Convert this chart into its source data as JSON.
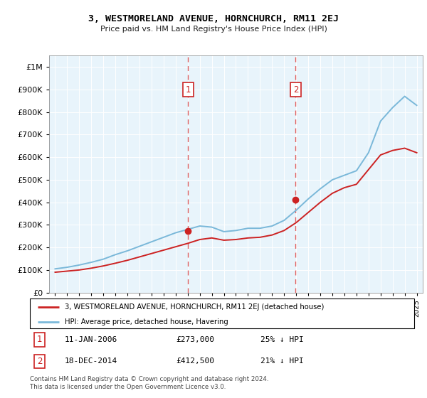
{
  "title": "3, WESTMORELAND AVENUE, HORNCHURCH, RM11 2EJ",
  "subtitle": "Price paid vs. HM Land Registry's House Price Index (HPI)",
  "ytick_values": [
    0,
    100000,
    200000,
    300000,
    400000,
    500000,
    600000,
    700000,
    800000,
    900000,
    1000000
  ],
  "ylim": [
    0,
    1050000
  ],
  "hpi_color": "#7ab8d9",
  "price_color": "#cc2222",
  "dashed_line_color": "#e06060",
  "legend_hpi": "HPI: Average price, detached house, Havering",
  "legend_price": "3, WESTMORELAND AVENUE, HORNCHURCH, RM11 2EJ (detached house)",
  "footnote": "Contains HM Land Registry data © Crown copyright and database right 2024.\nThis data is licensed under the Open Government Licence v3.0.",
  "hpi_years": [
    1995,
    1996,
    1997,
    1998,
    1999,
    2000,
    2001,
    2002,
    2003,
    2004,
    2005,
    2006,
    2007,
    2008,
    2009,
    2010,
    2011,
    2012,
    2013,
    2014,
    2015,
    2016,
    2017,
    2018,
    2019,
    2020,
    2021,
    2022,
    2023,
    2024,
    2025
  ],
  "hpi_vals": [
    105000,
    112000,
    122000,
    134000,
    148000,
    168000,
    185000,
    205000,
    225000,
    245000,
    265000,
    280000,
    295000,
    290000,
    270000,
    275000,
    285000,
    285000,
    295000,
    320000,
    365000,
    415000,
    460000,
    500000,
    520000,
    540000,
    620000,
    760000,
    820000,
    870000,
    830000
  ],
  "price_years": [
    1995,
    1996,
    1997,
    1998,
    1999,
    2000,
    2001,
    2002,
    2003,
    2004,
    2005,
    2006,
    2007,
    2008,
    2009,
    2010,
    2011,
    2012,
    2013,
    2014,
    2015,
    2016,
    2017,
    2018,
    2019,
    2020,
    2021,
    2022,
    2023,
    2024,
    2025
  ],
  "price_vals": [
    90000,
    95000,
    100000,
    108000,
    118000,
    130000,
    143000,
    158000,
    173000,
    188000,
    203000,
    218000,
    235000,
    242000,
    232000,
    235000,
    242000,
    245000,
    255000,
    275000,
    310000,
    355000,
    400000,
    440000,
    465000,
    480000,
    545000,
    610000,
    630000,
    640000,
    620000
  ],
  "sale1_year": 2006.04,
  "sale1_y": 273000,
  "sale2_year": 2014.96,
  "sale2_y": 412500,
  "x_ticks_years": [
    1995,
    1996,
    1997,
    1998,
    1999,
    2000,
    2001,
    2002,
    2003,
    2004,
    2005,
    2006,
    2007,
    2008,
    2009,
    2010,
    2011,
    2012,
    2013,
    2014,
    2015,
    2016,
    2017,
    2018,
    2019,
    2020,
    2021,
    2022,
    2023,
    2024,
    2025
  ],
  "bg_color": "#e8f4fb"
}
